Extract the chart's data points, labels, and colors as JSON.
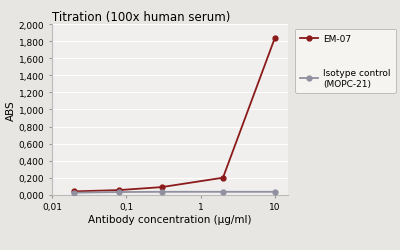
{
  "title": "Titration (100x human serum)",
  "xlabel": "Antibody concentration (µg/ml)",
  "ylabel": "ABS",
  "x_values": [
    0.02,
    0.08,
    0.3,
    2,
    10
  ],
  "em07_values": [
    0.04,
    0.055,
    0.09,
    0.2,
    1.84
  ],
  "isotype_values": [
    0.025,
    0.032,
    0.035,
    0.035,
    0.035
  ],
  "em07_color": "#8B1A1A",
  "isotype_color": "#9090a0",
  "em07_label": "EM-07",
  "isotype_label": "Isotype control\n(MOPC-21)",
  "ylim": [
    0.0,
    2.0
  ],
  "yticks": [
    0.0,
    0.2,
    0.4,
    0.6,
    0.8,
    1.0,
    1.2,
    1.4,
    1.6,
    1.8,
    2.0
  ],
  "ytick_labels": [
    "0,000",
    "0,200",
    "0,400",
    "0,600",
    "0,800",
    "1,000",
    "1,200",
    "1,400",
    "1,600",
    "1,800",
    "2,000"
  ],
  "xtick_vals": [
    0.01,
    0.1,
    1,
    10
  ],
  "xtick_labels": [
    "0,01",
    "0,1",
    "1",
    "10"
  ],
  "xlim_log": [
    0.01,
    15
  ],
  "plot_bg_color": "#f0efed",
  "fig_bg_color": "#e8e6e2",
  "grid_color": "#ffffff",
  "title_fontsize": 8.5,
  "label_fontsize": 7.5,
  "tick_fontsize": 6.5,
  "legend_fontsize": 6.5,
  "line_width": 1.3,
  "marker_size": 3.5
}
